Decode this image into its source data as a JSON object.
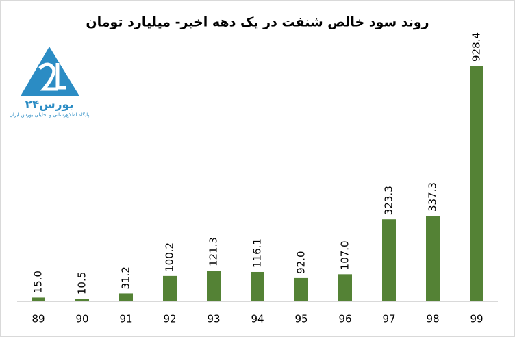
{
  "chart_data": {
    "type": "bar",
    "title": "روند سود خالص شنفت در یک دهه اخیر- میلیارد تومان",
    "categories": [
      "89",
      "90",
      "91",
      "92",
      "93",
      "94",
      "95",
      "96",
      "97",
      "98",
      "99"
    ],
    "values": [
      15.0,
      10.5,
      31.2,
      100.2,
      121.3,
      116.1,
      92.0,
      107.0,
      323.3,
      337.3,
      928.4
    ],
    "value_labels": [
      "15.0",
      "10.5",
      "31.2",
      "100.2",
      "121.3",
      "116.1",
      "92.0",
      "107.0",
      "323.3",
      "337.3",
      "928.4"
    ],
    "color": "#548235"
  },
  "logo": {
    "name": "بورس۲۴",
    "tagline": "پایگاه اطلاع‌رسانی و تحلیلی بورس ایران"
  }
}
